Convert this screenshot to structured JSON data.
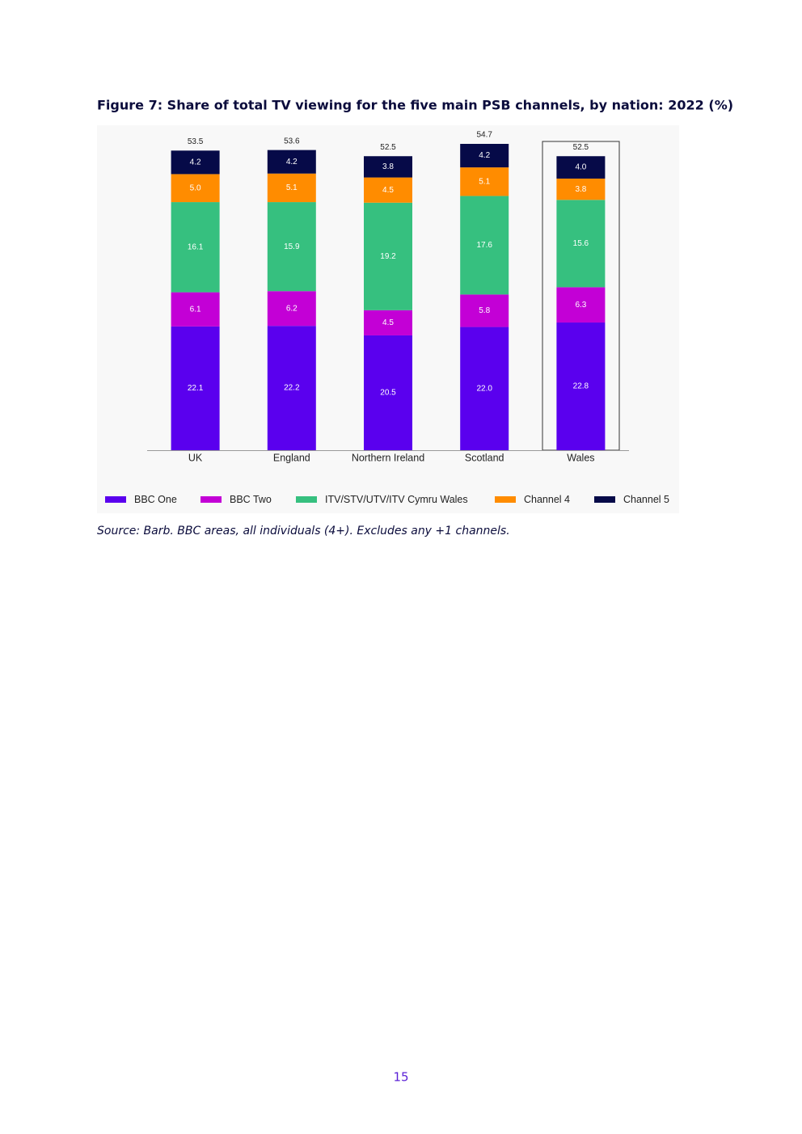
{
  "chart_data": {
    "type": "stacked-bar",
    "title": "Figure 7: Share of total TV viewing for the five main PSB channels, by nation: 2022 (%)",
    "source": "Source: Barb. BBC areas, all individuals (4+). Excludes any +1 channels.",
    "categories": [
      "UK",
      "England",
      "Northern Ireland",
      "Scotland",
      "Wales"
    ],
    "series": [
      {
        "name": "BBC One",
        "color": "#5a00ee",
        "values": [
          22.1,
          22.2,
          20.5,
          22.0,
          22.8
        ],
        "value_labels": [
          "22.1",
          "22.2",
          "20.5",
          "22.0",
          "22.8"
        ]
      },
      {
        "name": "BBC Two",
        "color": "#c300d6",
        "values": [
          6.1,
          6.2,
          4.5,
          5.8,
          6.3
        ],
        "value_labels": [
          "6.1",
          "6.2",
          "4.5",
          "5.8",
          "6.3"
        ]
      },
      {
        "name": "ITV/STV/UTV/ITV Cymru Wales",
        "color": "#36c07f",
        "values": [
          16.1,
          15.9,
          19.2,
          17.6,
          15.6
        ],
        "value_labels": [
          "16.1",
          "15.9",
          "19.2",
          "17.6",
          "15.6"
        ]
      },
      {
        "name": "Channel 4",
        "color": "#ff8c00",
        "values": [
          5.0,
          5.1,
          4.5,
          5.1,
          3.8
        ],
        "value_labels": [
          "5.0",
          "5.1",
          "4.5",
          "5.1",
          "3.8"
        ]
      },
      {
        "name": "Channel 5",
        "color": "#060a48",
        "values": [
          4.2,
          4.2,
          3.8,
          4.2,
          4.0
        ],
        "value_labels": [
          "4.2",
          "4.2",
          "3.8",
          "4.2",
          "4.0"
        ]
      }
    ],
    "totals": [
      53.5,
      53.6,
      52.5,
      54.7,
      52.5
    ],
    "legend": "bottom"
  },
  "page_number": "15"
}
